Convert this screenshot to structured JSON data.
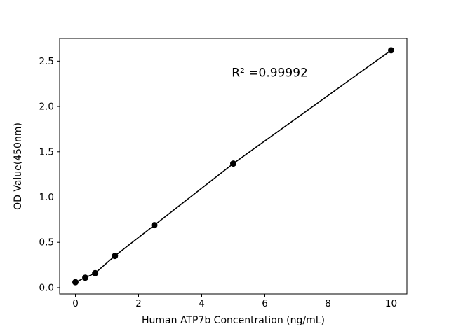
{
  "chart_data": {
    "type": "scatter",
    "title": "",
    "xlabel": "Human ATP7b Concentration (ng/mL)",
    "ylabel": "OD Value(450nm)",
    "annotation": "R² =0.99992",
    "annotation_xy": [
      4.95,
      2.33
    ],
    "x": [
      0,
      0.3125,
      0.625,
      1.25,
      2.5,
      5,
      10
    ],
    "y": [
      0.06,
      0.11,
      0.16,
      0.35,
      0.69,
      1.37,
      2.62
    ],
    "xlim": [
      -0.5,
      10.5
    ],
    "ylim": [
      -0.07,
      2.75
    ],
    "xticks": [
      0,
      2,
      4,
      6,
      8,
      10
    ],
    "xtick_labels": [
      "0",
      "2",
      "4",
      "6",
      "8",
      "10"
    ],
    "yticks": [
      0.0,
      0.5,
      1.0,
      1.5,
      2.0,
      2.5
    ],
    "ytick_labels": [
      "0.0",
      "0.5",
      "1.0",
      "1.5",
      "2.0",
      "2.5"
    ],
    "grid": false,
    "legend": "none",
    "line_color": "#000000",
    "marker_color": "#000000",
    "background_color": "#ffffff"
  }
}
